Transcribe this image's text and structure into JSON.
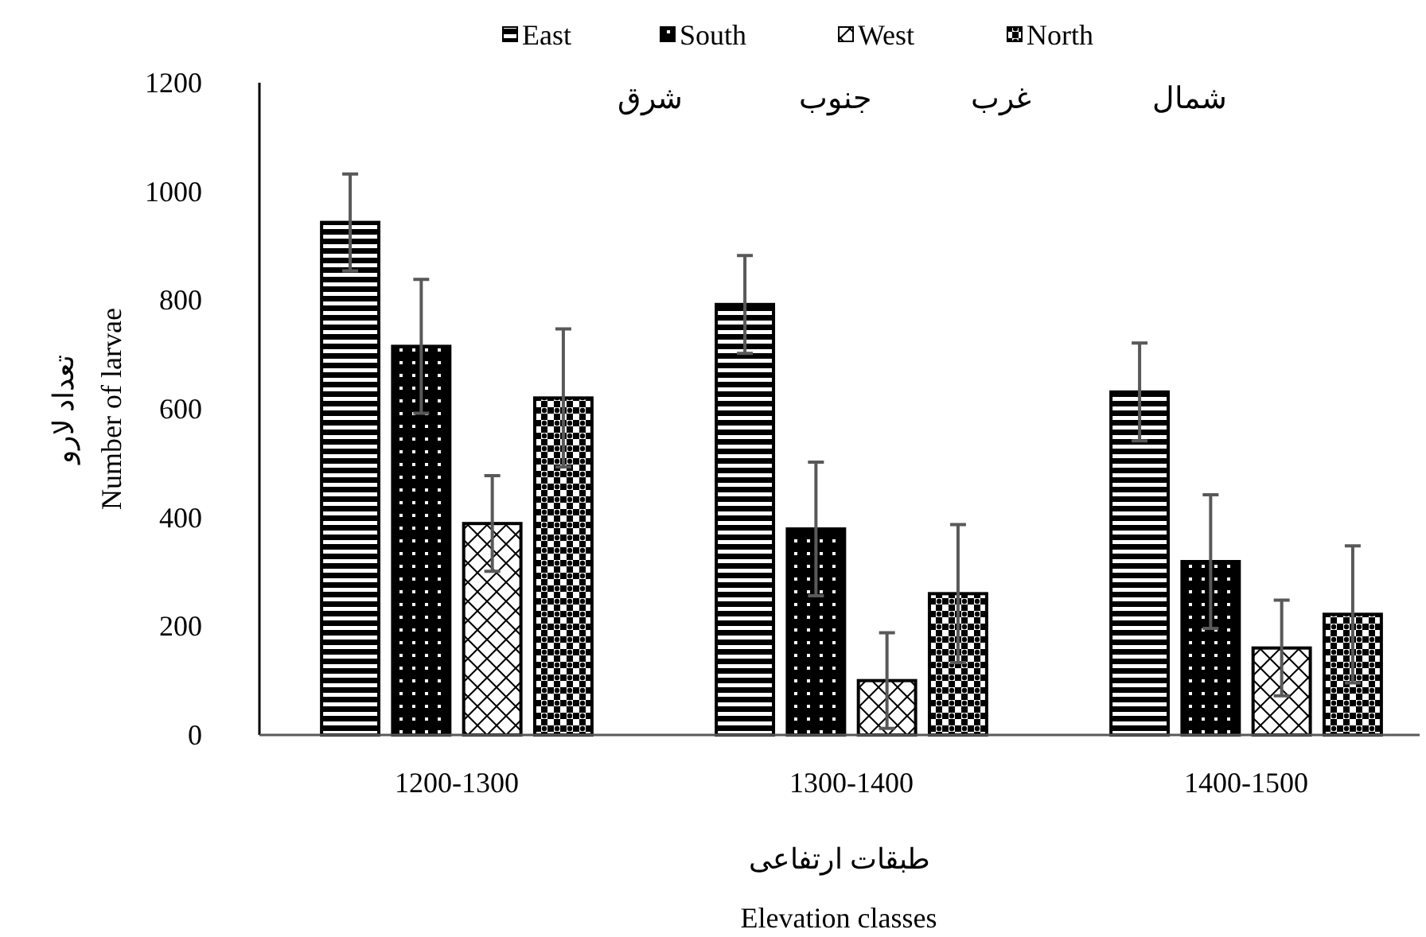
{
  "chart_data": {
    "type": "bar",
    "ylabel": "تعداد لارو\nNumber of larvae",
    "xlabel": "طبقات ارتفاعی\nElevation classes",
    "categories": [
      "1200-1300",
      "1300-1400",
      "1400-1500"
    ],
    "series": [
      {
        "name": "East",
        "color": "#000000",
        "values": [
          943,
          792,
          631
        ],
        "errors": [
          89,
          90,
          90
        ]
      },
      {
        "name": "South",
        "color": "#000000",
        "values": [
          715,
          379,
          319
        ],
        "errors": [
          123,
          123,
          123
        ]
      },
      {
        "name": "West",
        "color": "#000000",
        "values": [
          389,
          100,
          160
        ],
        "errors": [
          88,
          88,
          88
        ]
      },
      {
        "name": "North",
        "color": "#000000",
        "values": [
          620,
          260,
          222
        ],
        "errors": [
          127,
          127,
          126
        ]
      }
    ],
    "annotations": [
      "شرق",
      "جنوب",
      "غرب",
      "شمال"
    ],
    "ylim": [
      0,
      1200
    ],
    "yticks": [
      0,
      200,
      400,
      600,
      800,
      1000,
      1200
    ],
    "legend": "top",
    "grid": false
  }
}
